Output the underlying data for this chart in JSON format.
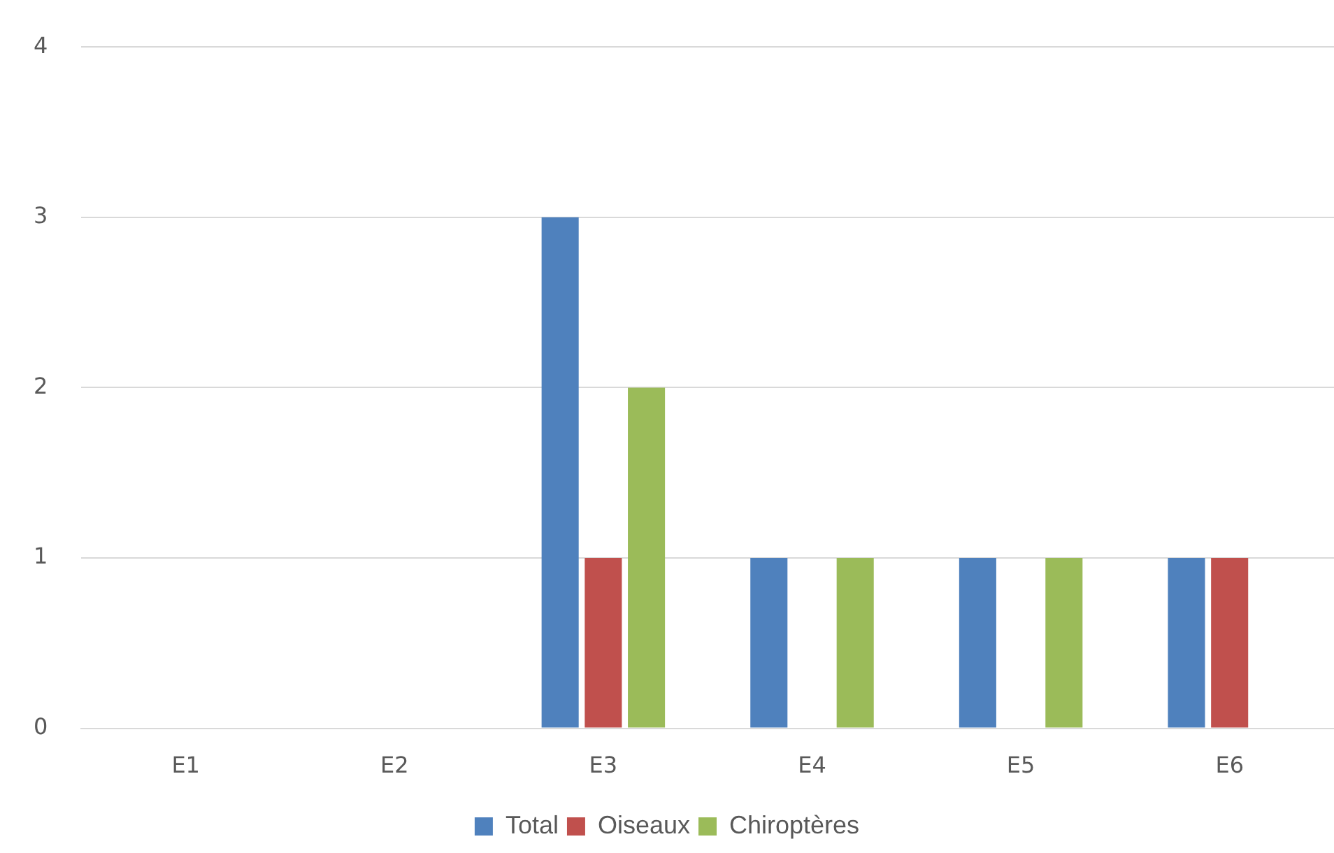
{
  "chart_data": {
    "type": "bar",
    "categories": [
      "E1",
      "E2",
      "E3",
      "E4",
      "E5",
      "E6"
    ],
    "series": [
      {
        "name": "Total",
        "color": "#4f81bd",
        "values": [
          0,
          0,
          3,
          1,
          1,
          1
        ]
      },
      {
        "name": "Oiseaux",
        "color": "#c0504d",
        "values": [
          0,
          0,
          1,
          0,
          0,
          1
        ]
      },
      {
        "name": "Chiroptères",
        "color": "#9bbb59",
        "values": [
          0,
          0,
          2,
          1,
          1,
          0
        ]
      }
    ],
    "ylim": [
      0,
      4
    ],
    "yticks": [
      0,
      1,
      2,
      3,
      4
    ],
    "grid": "y",
    "legend": "bottom"
  }
}
